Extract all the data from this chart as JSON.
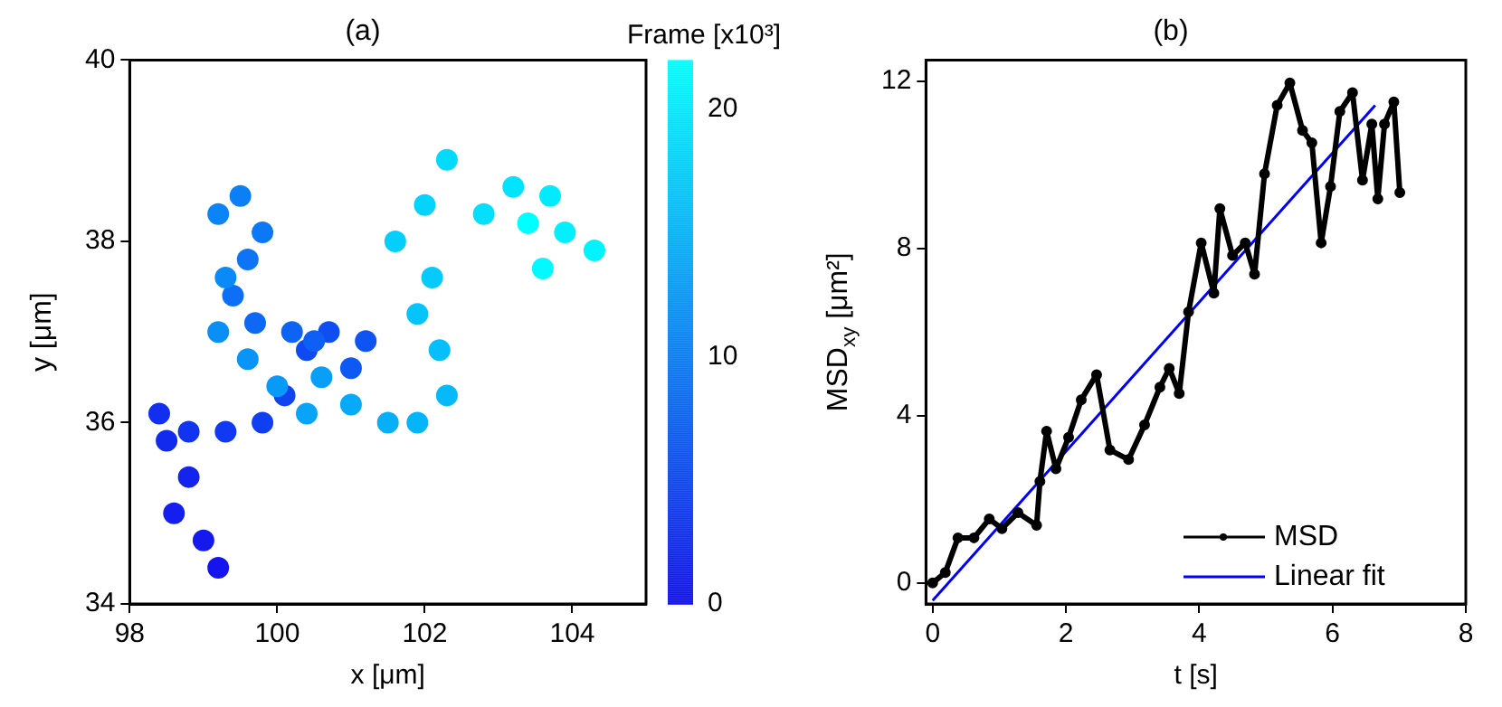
{
  "chart_data": [
    {
      "type": "scatter",
      "title": "(a)",
      "xlabel": "x [μm]",
      "ylabel": "y [μm]",
      "clabel": "Frame [x10³]",
      "clim": [
        0,
        22
      ],
      "cticks": [
        0,
        10,
        20
      ],
      "xlim": [
        98,
        105
      ],
      "xticks": [
        98,
        100,
        102,
        104
      ],
      "ylim": [
        34,
        40
      ],
      "yticks": [
        34,
        36,
        38,
        40
      ],
      "grid": false,
      "marker": "circle",
      "x": [
        99.2,
        99.0,
        98.6,
        98.8,
        98.5,
        98.4,
        98.8,
        99.3,
        99.8,
        100.1,
        100.4,
        100.7,
        101.2,
        101.0,
        100.5,
        100.2,
        99.7,
        99.4,
        99.6,
        99.8,
        99.5,
        99.2,
        99.3,
        99.2,
        99.6,
        100.0,
        100.6,
        100.4,
        101.0,
        101.5,
        101.9,
        102.3,
        102.2,
        101.9,
        102.1,
        101.6,
        102.0,
        102.3,
        102.8,
        103.2,
        103.7,
        103.9,
        104.3,
        103.6,
        103.4
      ],
      "values": [
        34.4,
        34.7,
        35.0,
        35.4,
        35.8,
        36.1,
        35.9,
        35.9,
        36.0,
        36.3,
        36.8,
        37.0,
        36.9,
        36.6,
        36.9,
        37.0,
        37.1,
        37.4,
        37.8,
        38.1,
        38.5,
        38.3,
        37.6,
        37.0,
        36.7,
        36.4,
        36.5,
        36.1,
        36.2,
        36.0,
        36.0,
        36.3,
        36.8,
        37.2,
        37.6,
        38.0,
        38.4,
        38.9,
        38.3,
        38.6,
        38.5,
        38.1,
        37.9,
        37.7,
        38.2
      ],
      "cvalues": [
        0,
        0.5,
        1,
        1.5,
        2,
        2.5,
        3,
        3.5,
        4,
        4.5,
        5,
        5.5,
        6,
        6.5,
        7,
        7.5,
        8,
        8.5,
        9,
        9.5,
        10,
        10.5,
        11,
        11.5,
        12,
        12.5,
        13,
        13.5,
        14,
        14.5,
        15,
        15.5,
        16,
        16.5,
        17,
        17.5,
        18,
        18.5,
        19,
        19.5,
        20,
        20.5,
        21,
        21.5,
        22
      ]
    },
    {
      "type": "line",
      "title": "(b)",
      "xlabel": "t [s]",
      "ylabel": "MSD$_{xy}$ [μm²]",
      "xlim": [
        -0.1,
        8
      ],
      "xticks": [
        0,
        2,
        4,
        6,
        8
      ],
      "ylim": [
        -0.5,
        12.5
      ],
      "yticks": [
        0,
        4,
        8,
        12
      ],
      "grid": false,
      "legend": "bottom right",
      "series": [
        {
          "name": "MSD",
          "color": "#000000",
          "marker": "circle",
          "x": [
            0,
            0.19,
            0.38,
            0.62,
            0.85,
            1.04,
            1.28,
            1.56,
            1.61,
            1.71,
            1.85,
            2.04,
            2.23,
            2.46,
            2.66,
            2.94,
            3.18,
            3.41,
            3.55,
            3.7,
            3.84,
            4.03,
            4.22,
            4.31,
            4.5,
            4.69,
            4.83,
            4.98,
            5.17,
            5.36,
            5.55,
            5.69,
            5.83,
            5.97,
            6.11,
            6.3,
            6.45,
            6.59,
            6.68,
            6.78,
            6.92,
            7.01
          ],
          "values": [
            0,
            0.25,
            1.08,
            1.08,
            1.53,
            1.3,
            1.68,
            1.38,
            2.43,
            3.63,
            2.73,
            3.48,
            4.38,
            4.98,
            3.18,
            2.95,
            3.78,
            4.68,
            5.13,
            4.53,
            6.48,
            8.13,
            6.93,
            8.95,
            7.83,
            8.13,
            7.38,
            9.78,
            11.42,
            11.95,
            10.82,
            10.52,
            8.13,
            9.48,
            11.27,
            11.72,
            9.63,
            10.97,
            9.18,
            10.97,
            11.5,
            9.33
          ]
        },
        {
          "name": "Linear fit",
          "color": "#0000ff",
          "type": "line",
          "x": [
            0,
            6.64
          ],
          "values": [
            -0.42,
            11.42
          ]
        }
      ]
    }
  ]
}
